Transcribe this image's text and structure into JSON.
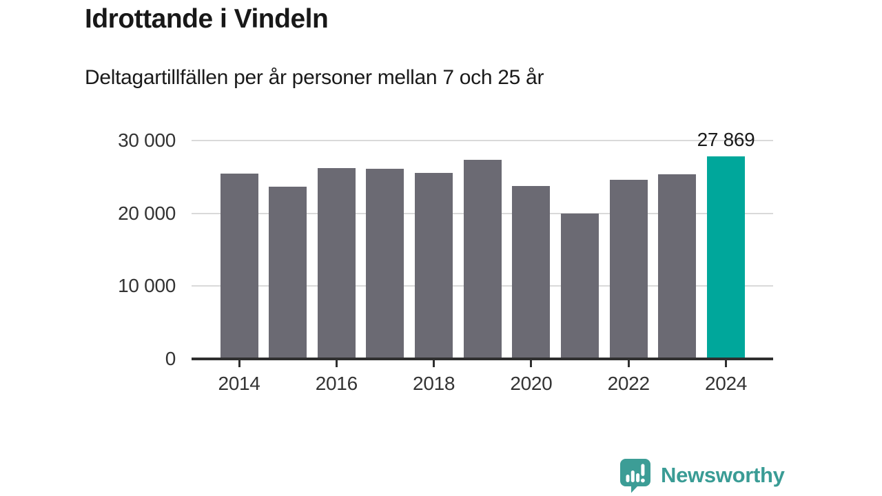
{
  "header": {
    "title": "Idrottande i Vindeln",
    "subtitle": "Deltagartillfällen per år personer mellan 7 och 25 år"
  },
  "chart_data": {
    "type": "bar",
    "title": "Idrottande i Vindeln",
    "subtitle": "Deltagartillfällen per år personer mellan 7 och 25 år",
    "categories": [
      "2014",
      "2015",
      "2016",
      "2017",
      "2018",
      "2019",
      "2020",
      "2021",
      "2022",
      "2023",
      "2024"
    ],
    "values": [
      25500,
      23700,
      26250,
      26150,
      25550,
      27350,
      23800,
      20000,
      24650,
      25400,
      27869
    ],
    "ylim": [
      0,
      30000
    ],
    "yticks": [
      {
        "value": 0,
        "label": "0"
      },
      {
        "value": 10000,
        "label": "10 000"
      },
      {
        "value": 20000,
        "label": "20 000"
      },
      {
        "value": 30000,
        "label": "30 000"
      }
    ],
    "xtick_labels": [
      "2014",
      "2016",
      "2018",
      "2020",
      "2022",
      "2024"
    ],
    "grid": "horizontal",
    "legend": "none",
    "highlight_index": 10,
    "annotation": {
      "category": "2024",
      "label": "27 869"
    },
    "colors": {
      "bar": "#6b6a73",
      "highlight": "#00a79b",
      "axis": "#2f2f2f",
      "gridline": "#d9d9d9",
      "tick_label": "#333333",
      "annotation_text": "#1a1a1a"
    }
  },
  "footer": {
    "brand": "Newsworthy",
    "brand_color": "#3a9c95",
    "logo_icon": "bar-chart-speech-bubble"
  }
}
